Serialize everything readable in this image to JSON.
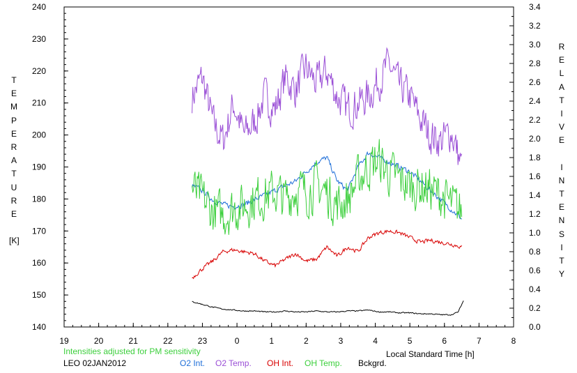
{
  "chart_data": {
    "type": "line",
    "date_label": "LEO 02JAN2012",
    "note": "Intensities adjusted for PM sensitivity",
    "xlabel": "Local Standard Time [h]",
    "ylabel_left_lines": [
      "T",
      "E",
      "M",
      "P",
      "E",
      "R",
      "A",
      "T",
      "U",
      "R",
      "E",
      "",
      "[K]"
    ],
    "ylabel_right_lines": [
      "R",
      "E",
      "L",
      "A",
      "T",
      "I",
      "V",
      "E",
      "",
      "I",
      "N",
      "T",
      "E",
      "N",
      "S",
      "I",
      "T",
      "Y"
    ],
    "x_tick_labels": [
      "19",
      "20",
      "21",
      "22",
      "23",
      "0",
      "1",
      "2",
      "3",
      "4",
      "5",
      "6",
      "7",
      "8"
    ],
    "xlim": [
      19,
      32
    ],
    "ylim_left": [
      140,
      240
    ],
    "ylim_right": [
      0,
      3.4
    ],
    "y_left_ticks": [
      140,
      150,
      160,
      170,
      180,
      190,
      200,
      210,
      220,
      230,
      240
    ],
    "y_right_ticks": [
      0.0,
      0.2,
      0.4,
      0.6,
      0.8,
      1.0,
      1.2,
      1.4,
      1.6,
      1.8,
      2.0,
      2.2,
      2.4,
      2.6,
      2.8,
      3.0,
      3.2,
      3.4
    ],
    "grid": false,
    "legend": [
      {
        "name": "O2 Int.",
        "color": "#1e6ed8"
      },
      {
        "name": "O2 Temp.",
        "color": "#9a4fd6"
      },
      {
        "name": "OH Int.",
        "color": "#d80000"
      },
      {
        "name": "OH Temp.",
        "color": "#3ccf3c"
      },
      {
        "name": "Bckgrd.",
        "color": "#000000"
      }
    ],
    "series": [
      {
        "name": "O2 Temp.",
        "axis": "left",
        "color": "#9a4fd6",
        "x": [
          22.7,
          23.0,
          23.3,
          23.6,
          23.9,
          24.2,
          24.5,
          24.8,
          25.1,
          25.4,
          25.7,
          26.0,
          26.3,
          26.6,
          26.9,
          27.2,
          27.5,
          27.8,
          28.1,
          28.4,
          28.7,
          29.0,
          29.3,
          29.6,
          29.9,
          30.2,
          30.5
        ],
        "y": [
          212,
          218,
          204,
          198,
          210,
          200,
          204,
          212,
          208,
          218,
          214,
          221,
          216,
          220,
          212,
          208,
          210,
          212,
          217,
          222,
          215,
          212,
          205,
          200,
          198,
          201,
          190
        ]
      },
      {
        "name": "O2 Int.",
        "axis": "right",
        "color": "#1e6ed8",
        "x": [
          22.7,
          23.0,
          23.3,
          23.6,
          23.9,
          24.2,
          24.5,
          24.8,
          25.1,
          25.4,
          25.7,
          26.0,
          26.3,
          26.6,
          26.9,
          27.2,
          27.5,
          27.8,
          28.1,
          28.4,
          28.7,
          29.0,
          29.3,
          29.6,
          29.9,
          30.2,
          30.5
        ],
        "y": [
          1.5,
          1.45,
          1.35,
          1.3,
          1.28,
          1.3,
          1.35,
          1.4,
          1.45,
          1.5,
          1.55,
          1.65,
          1.75,
          1.8,
          1.55,
          1.45,
          1.7,
          1.85,
          1.8,
          1.75,
          1.7,
          1.65,
          1.55,
          1.45,
          1.35,
          1.25,
          1.15
        ]
      },
      {
        "name": "OH Temp.",
        "axis": "left",
        "color": "#3ccf3c",
        "x": [
          22.7,
          23.0,
          23.3,
          23.6,
          23.9,
          24.2,
          24.5,
          24.8,
          25.1,
          25.4,
          25.7,
          26.0,
          26.3,
          26.6,
          26.9,
          27.2,
          27.5,
          27.8,
          28.1,
          28.4,
          28.7,
          29.0,
          29.3,
          29.6,
          29.9,
          30.2,
          30.5
        ],
        "y": [
          183,
          180,
          176,
          175,
          177,
          178,
          180,
          181,
          182,
          180,
          183,
          182,
          184,
          182,
          178,
          180,
          186,
          190,
          192,
          188,
          186,
          184,
          184,
          183,
          181,
          178,
          176
        ]
      },
      {
        "name": "OH Int.",
        "axis": "right",
        "color": "#d80000",
        "x": [
          22.7,
          23.0,
          23.3,
          23.6,
          23.9,
          24.2,
          24.5,
          24.8,
          25.1,
          25.4,
          25.7,
          26.0,
          26.3,
          26.6,
          26.9,
          27.2,
          27.5,
          27.8,
          28.1,
          28.4,
          28.7,
          29.0,
          29.3,
          29.6,
          29.9,
          30.2,
          30.5
        ],
        "y": [
          0.52,
          0.62,
          0.7,
          0.8,
          0.82,
          0.8,
          0.78,
          0.7,
          0.65,
          0.72,
          0.78,
          0.7,
          0.72,
          0.85,
          0.75,
          0.85,
          0.8,
          0.95,
          1.0,
          1.02,
          1.0,
          0.95,
          0.9,
          0.92,
          0.9,
          0.88,
          0.85
        ]
      },
      {
        "name": "Bckgrd.",
        "axis": "right",
        "color": "#000000",
        "x": [
          22.7,
          23.0,
          23.3,
          23.6,
          23.9,
          24.2,
          24.5,
          24.8,
          25.1,
          25.4,
          25.7,
          26.0,
          26.3,
          26.6,
          26.9,
          27.2,
          27.5,
          27.8,
          28.1,
          28.4,
          28.7,
          29.0,
          29.3,
          29.6,
          29.9,
          30.2,
          30.4,
          30.55
        ],
        "y": [
          0.27,
          0.24,
          0.21,
          0.19,
          0.18,
          0.17,
          0.17,
          0.16,
          0.16,
          0.17,
          0.16,
          0.16,
          0.17,
          0.16,
          0.16,
          0.17,
          0.17,
          0.18,
          0.16,
          0.16,
          0.15,
          0.15,
          0.14,
          0.14,
          0.13,
          0.13,
          0.16,
          0.28
        ]
      }
    ]
  }
}
